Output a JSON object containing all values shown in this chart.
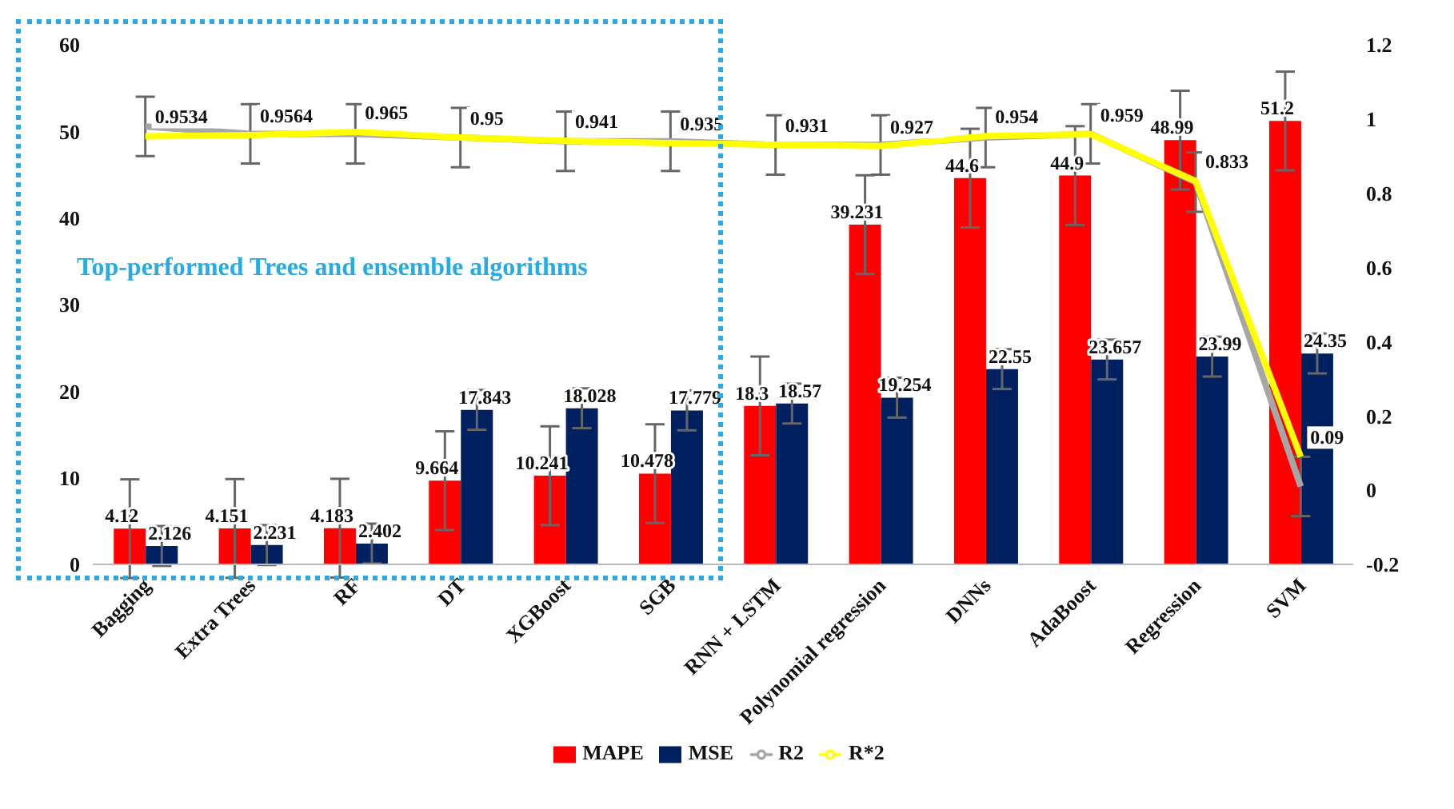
{
  "chart_data": {
    "type": "bar",
    "categories": [
      "Bagging",
      "Extra Trees",
      "RF",
      "DT",
      "XGBoost",
      "SGB",
      "RNN + LSTM",
      "Polynomial regression",
      "DNNs",
      "AdaBoost",
      "Regression",
      "SVM"
    ],
    "series": [
      {
        "name": "MAPE",
        "color": "#ff0000",
        "values": [
          4.12,
          4.151,
          4.183,
          9.664,
          10.241,
          10.478,
          18.3,
          39.231,
          44.6,
          44.9,
          48.99,
          51.2
        ],
        "errors": [
          5.7,
          5.7,
          5.7,
          5.7,
          5.7,
          5.7,
          5.7,
          5.7,
          5.7,
          5.7,
          5.7,
          5.7
        ],
        "value_labels": [
          "4.12",
          "4.151",
          "4.183",
          "9.664",
          "10.241",
          "10.478",
          "18.3",
          "39.231",
          "44.6",
          "44.9",
          "48.99",
          "51.2"
        ]
      },
      {
        "name": "MSE",
        "color": "#002060",
        "values": [
          2.126,
          2.231,
          2.402,
          17.843,
          18.028,
          17.779,
          18.57,
          19.254,
          22.55,
          23.657,
          23.99,
          24.35
        ],
        "errors": [
          2.3,
          2.3,
          2.3,
          2.3,
          2.3,
          2.3,
          2.3,
          2.3,
          2.3,
          2.3,
          2.3,
          2.3
        ],
        "value_labels": [
          "2.126",
          "2.231",
          "2.402",
          "17.843",
          "18.028",
          "17.779",
          "18.57",
          "19.254",
          "22.55",
          "23.657",
          "23.99",
          "24.35"
        ]
      },
      {
        "name": "R2",
        "type": "line",
        "axis": "y2",
        "color": "#a6a6a6",
        "values": [
          0.98,
          0.96,
          0.96,
          0.95,
          0.94,
          0.94,
          0.93,
          0.93,
          0.95,
          0.96,
          0.83,
          0.01
        ],
        "errors": [
          0.08,
          0.08,
          0.08,
          0.08,
          0.08,
          0.08,
          0.08,
          0.08,
          0.08,
          0.08,
          0.08,
          0.08
        ]
      },
      {
        "name": "R*2",
        "type": "line",
        "axis": "y2",
        "color": "#ffff00",
        "values": [
          0.9534,
          0.9564,
          0.965,
          0.95,
          0.941,
          0.935,
          0.931,
          0.927,
          0.954,
          0.959,
          0.833,
          0.09
        ],
        "value_labels": [
          "0.9534",
          "0.9564",
          "0.965",
          "0.95",
          "0.941",
          "0.935",
          "0.931",
          "0.927",
          "0.954",
          "0.959",
          "0.833",
          "0.09"
        ]
      }
    ],
    "ylim": [
      0,
      60
    ],
    "yticks": [
      0,
      10,
      20,
      30,
      40,
      50,
      60
    ],
    "y2lim": [
      -0.2,
      1.2
    ],
    "y2ticks": [
      -0.2,
      0,
      0.2,
      0.4,
      0.6,
      0.8,
      1,
      1.2
    ],
    "annotations": [
      "Top-performed Trees and ensemble algorithms"
    ],
    "legend": "bottom",
    "grid": false,
    "marker": "none",
    "line_style": "solid"
  }
}
